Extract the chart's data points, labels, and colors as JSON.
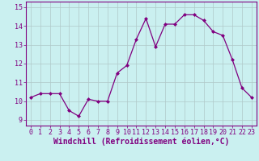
{
  "x": [
    0,
    1,
    2,
    3,
    4,
    5,
    6,
    7,
    8,
    9,
    10,
    11,
    12,
    13,
    14,
    15,
    16,
    17,
    18,
    19,
    20,
    21,
    22,
    23
  ],
  "y": [
    10.2,
    10.4,
    10.4,
    10.4,
    9.5,
    9.2,
    10.1,
    10.0,
    10.0,
    11.5,
    11.9,
    13.3,
    14.4,
    12.9,
    14.1,
    14.1,
    14.6,
    14.6,
    14.3,
    13.7,
    13.5,
    12.2,
    10.7,
    10.2
  ],
  "line_color": "#800080",
  "marker": "D",
  "marker_size": 2.0,
  "bg_color": "#caf0f0",
  "grid_color": "#b0c8c8",
  "xlabel": "Windchill (Refroidissement éolien,°C)",
  "xlabel_color": "#800080",
  "tick_color": "#800080",
  "xlabel_fontsize": 7.0,
  "tick_fontsize": 6.0,
  "ylim": [
    8.7,
    15.3
  ],
  "yticks": [
    9,
    10,
    11,
    12,
    13,
    14,
    15
  ],
  "xticks": [
    0,
    1,
    2,
    3,
    4,
    5,
    6,
    7,
    8,
    9,
    10,
    11,
    12,
    13,
    14,
    15,
    16,
    17,
    18,
    19,
    20,
    21,
    22,
    23
  ],
  "spine_color": "#800080",
  "linewidth": 0.9
}
